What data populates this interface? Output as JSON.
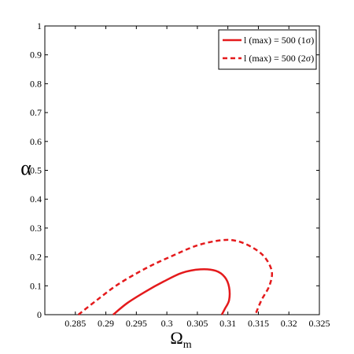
{
  "chart_data": {
    "type": "line",
    "title": "",
    "xlabel": "Ω",
    "xlabel_sub": "m",
    "ylabel": "α",
    "xlim": [
      0.28,
      0.325
    ],
    "ylim": [
      0,
      1
    ],
    "x_ticks": [
      0.285,
      0.29,
      0.295,
      0.3,
      0.305,
      0.31,
      0.315,
      0.32,
      0.325
    ],
    "x_tick_labels": [
      "0.285",
      "0.29",
      "0.295",
      "0.3",
      "0.305",
      "0.31",
      "0.315",
      "0.32",
      "0.325"
    ],
    "y_ticks": [
      0,
      0.1,
      0.2,
      0.3,
      0.4,
      0.5,
      0.6,
      0.7,
      0.8,
      0.9,
      1
    ],
    "y_tick_labels": [
      "0",
      "0.1",
      "0.2",
      "0.3",
      "0.4",
      "0.5",
      "0.6",
      "0.7",
      "0.8",
      "0.9",
      "1"
    ],
    "grid": false,
    "legend_position": "top-right",
    "series": [
      {
        "name": "l (max) = 500 (1σ)",
        "color": "#e41a1c",
        "style": "solid",
        "points": [
          [
            0.2912,
            0.0
          ],
          [
            0.2935,
            0.04
          ],
          [
            0.2965,
            0.08
          ],
          [
            0.2995,
            0.115
          ],
          [
            0.3025,
            0.145
          ],
          [
            0.3055,
            0.157
          ],
          [
            0.308,
            0.152
          ],
          [
            0.3095,
            0.13
          ],
          [
            0.3102,
            0.095
          ],
          [
            0.3102,
            0.05
          ],
          [
            0.3095,
            0.02
          ],
          [
            0.309,
            0.0
          ]
        ]
      },
      {
        "name": "l (max) = 500 (2σ)",
        "color": "#e41a1c",
        "style": "dashed",
        "points": [
          [
            0.2855,
            0.0
          ],
          [
            0.2885,
            0.05
          ],
          [
            0.292,
            0.105
          ],
          [
            0.2965,
            0.16
          ],
          [
            0.3005,
            0.2
          ],
          [
            0.305,
            0.24
          ],
          [
            0.309,
            0.258
          ],
          [
            0.3115,
            0.255
          ],
          [
            0.314,
            0.233
          ],
          [
            0.316,
            0.2
          ],
          [
            0.3172,
            0.15
          ],
          [
            0.3168,
            0.1
          ],
          [
            0.3155,
            0.05
          ],
          [
            0.3145,
            0.0
          ]
        ]
      }
    ]
  }
}
